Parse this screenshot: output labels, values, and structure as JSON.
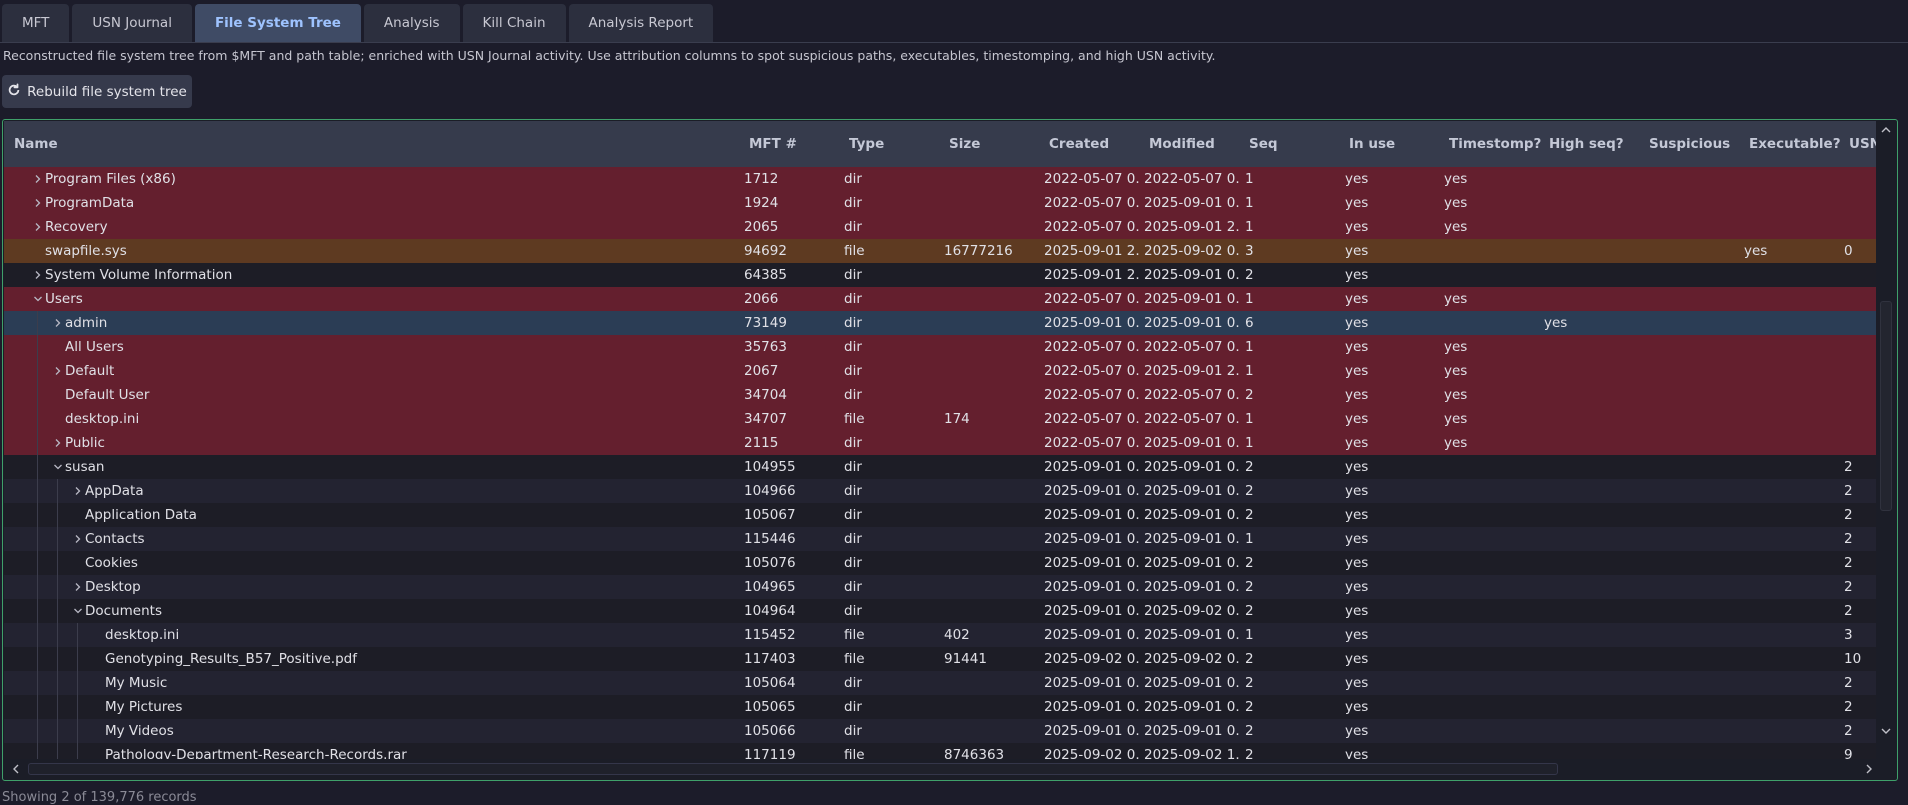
{
  "tabs": [
    {
      "label": "MFT",
      "active": false
    },
    {
      "label": "USN Journal",
      "active": false
    },
    {
      "label": "File System Tree",
      "active": true
    },
    {
      "label": "Analysis",
      "active": false
    },
    {
      "label": "Kill Chain",
      "active": false
    },
    {
      "label": "Analysis Report",
      "active": false
    }
  ],
  "description": "Reconstructed file system tree from $MFT and path table; enriched with USN Journal activity. Use attribution columns to spot suspicious paths, executables, timestomping, and high USN activity.",
  "rebuild_button": {
    "label": "Rebuild file system tree",
    "icon": "refresh-icon"
  },
  "table": {
    "columns": [
      "Name",
      "MFT #",
      "Type",
      "Size",
      "Created",
      "Modified",
      "Seq",
      "In use",
      "Timestomp?",
      "High seq?",
      "Suspicious pa",
      "Executable?",
      "USN"
    ],
    "rows": [
      {
        "name": "Program Files (x86)",
        "depth": 0,
        "expander": "collapsed",
        "highlight": "red",
        "mft": "1712",
        "type": "dir",
        "size": "",
        "created": "2022-05-07 0...",
        "modified": "2022-05-07 0...",
        "seq": "1",
        "inuse": "yes",
        "timestomp": "yes",
        "highseq": "",
        "suspicious": "",
        "exec": "",
        "usn": ""
      },
      {
        "name": "ProgramData",
        "depth": 0,
        "expander": "collapsed",
        "highlight": "red",
        "mft": "1924",
        "type": "dir",
        "size": "",
        "created": "2022-05-07 0...",
        "modified": "2025-09-01 0...",
        "seq": "1",
        "inuse": "yes",
        "timestomp": "yes",
        "highseq": "",
        "suspicious": "",
        "exec": "",
        "usn": ""
      },
      {
        "name": "Recovery",
        "depth": 0,
        "expander": "collapsed",
        "highlight": "red",
        "mft": "2065",
        "type": "dir",
        "size": "",
        "created": "2022-05-07 0...",
        "modified": "2025-09-01 2...",
        "seq": "1",
        "inuse": "yes",
        "timestomp": "yes",
        "highseq": "",
        "suspicious": "",
        "exec": "",
        "usn": ""
      },
      {
        "name": "swapfile.sys",
        "depth": 0,
        "expander": "none",
        "highlight": "orange",
        "mft": "94692",
        "type": "file",
        "size": "16777216",
        "created": "2025-09-01 2...",
        "modified": "2025-09-02 0...",
        "seq": "3",
        "inuse": "yes",
        "timestomp": "",
        "highseq": "",
        "suspicious": "",
        "exec": "yes",
        "usn": "0"
      },
      {
        "name": "System Volume Information",
        "depth": 0,
        "expander": "collapsed",
        "highlight": "even",
        "mft": "64385",
        "type": "dir",
        "size": "",
        "created": "2025-09-01 2...",
        "modified": "2025-09-01 0...",
        "seq": "2",
        "inuse": "yes",
        "timestomp": "",
        "highseq": "",
        "suspicious": "",
        "exec": "",
        "usn": ""
      },
      {
        "name": "Users",
        "depth": 0,
        "expander": "expanded",
        "highlight": "red",
        "mft": "2066",
        "type": "dir",
        "size": "",
        "created": "2022-05-07 0...",
        "modified": "2025-09-01 0...",
        "seq": "1",
        "inuse": "yes",
        "timestomp": "yes",
        "highseq": "",
        "suspicious": "",
        "exec": "",
        "usn": ""
      },
      {
        "name": "admin",
        "depth": 1,
        "expander": "collapsed",
        "highlight": "sel",
        "mft": "73149",
        "type": "dir",
        "size": "",
        "created": "2025-09-01 0...",
        "modified": "2025-09-01 0...",
        "seq": "6",
        "inuse": "yes",
        "timestomp": "",
        "highseq": "yes",
        "suspicious": "",
        "exec": "",
        "usn": ""
      },
      {
        "name": "All Users",
        "depth": 1,
        "expander": "none",
        "highlight": "red",
        "mft": "35763",
        "type": "dir",
        "size": "",
        "created": "2022-05-07 0...",
        "modified": "2022-05-07 0...",
        "seq": "1",
        "inuse": "yes",
        "timestomp": "yes",
        "highseq": "",
        "suspicious": "",
        "exec": "",
        "usn": ""
      },
      {
        "name": "Default",
        "depth": 1,
        "expander": "collapsed",
        "highlight": "red",
        "mft": "2067",
        "type": "dir",
        "size": "",
        "created": "2022-05-07 0...",
        "modified": "2025-09-01 2...",
        "seq": "1",
        "inuse": "yes",
        "timestomp": "yes",
        "highseq": "",
        "suspicious": "",
        "exec": "",
        "usn": ""
      },
      {
        "name": "Default User",
        "depth": 1,
        "expander": "none",
        "highlight": "red",
        "mft": "34704",
        "type": "dir",
        "size": "",
        "created": "2022-05-07 0...",
        "modified": "2022-05-07 0...",
        "seq": "2",
        "inuse": "yes",
        "timestomp": "yes",
        "highseq": "",
        "suspicious": "",
        "exec": "",
        "usn": ""
      },
      {
        "name": "desktop.ini",
        "depth": 1,
        "expander": "none",
        "highlight": "red",
        "mft": "34707",
        "type": "file",
        "size": "174",
        "created": "2022-05-07 0...",
        "modified": "2022-05-07 0...",
        "seq": "1",
        "inuse": "yes",
        "timestomp": "yes",
        "highseq": "",
        "suspicious": "",
        "exec": "",
        "usn": ""
      },
      {
        "name": "Public",
        "depth": 1,
        "expander": "collapsed",
        "highlight": "red",
        "mft": "2115",
        "type": "dir",
        "size": "",
        "created": "2022-05-07 0...",
        "modified": "2025-09-01 0...",
        "seq": "1",
        "inuse": "yes",
        "timestomp": "yes",
        "highseq": "",
        "suspicious": "",
        "exec": "",
        "usn": ""
      },
      {
        "name": "susan",
        "depth": 1,
        "expander": "expanded",
        "highlight": "even",
        "mft": "104955",
        "type": "dir",
        "size": "",
        "created": "2025-09-01 0...",
        "modified": "2025-09-01 0...",
        "seq": "2",
        "inuse": "yes",
        "timestomp": "",
        "highseq": "",
        "suspicious": "",
        "exec": "",
        "usn": "2"
      },
      {
        "name": "AppData",
        "depth": 2,
        "expander": "collapsed",
        "highlight": "odd",
        "mft": "104966",
        "type": "dir",
        "size": "",
        "created": "2025-09-01 0...",
        "modified": "2025-09-01 0...",
        "seq": "2",
        "inuse": "yes",
        "timestomp": "",
        "highseq": "",
        "suspicious": "",
        "exec": "",
        "usn": "2"
      },
      {
        "name": "Application Data",
        "depth": 2,
        "expander": "none",
        "highlight": "even",
        "mft": "105067",
        "type": "dir",
        "size": "",
        "created": "2025-09-01 0...",
        "modified": "2025-09-01 0...",
        "seq": "2",
        "inuse": "yes",
        "timestomp": "",
        "highseq": "",
        "suspicious": "",
        "exec": "",
        "usn": "2"
      },
      {
        "name": "Contacts",
        "depth": 2,
        "expander": "collapsed",
        "highlight": "odd",
        "mft": "115446",
        "type": "dir",
        "size": "",
        "created": "2025-09-01 0...",
        "modified": "2025-09-01 0...",
        "seq": "1",
        "inuse": "yes",
        "timestomp": "",
        "highseq": "",
        "suspicious": "",
        "exec": "",
        "usn": "2"
      },
      {
        "name": "Cookies",
        "depth": 2,
        "expander": "none",
        "highlight": "even",
        "mft": "105076",
        "type": "dir",
        "size": "",
        "created": "2025-09-01 0...",
        "modified": "2025-09-01 0...",
        "seq": "2",
        "inuse": "yes",
        "timestomp": "",
        "highseq": "",
        "suspicious": "",
        "exec": "",
        "usn": "2"
      },
      {
        "name": "Desktop",
        "depth": 2,
        "expander": "collapsed",
        "highlight": "odd",
        "mft": "104965",
        "type": "dir",
        "size": "",
        "created": "2025-09-01 0...",
        "modified": "2025-09-01 0...",
        "seq": "2",
        "inuse": "yes",
        "timestomp": "",
        "highseq": "",
        "suspicious": "",
        "exec": "",
        "usn": "2"
      },
      {
        "name": "Documents",
        "depth": 2,
        "expander": "expanded",
        "highlight": "even",
        "mft": "104964",
        "type": "dir",
        "size": "",
        "created": "2025-09-01 0...",
        "modified": "2025-09-02 0...",
        "seq": "2",
        "inuse": "yes",
        "timestomp": "",
        "highseq": "",
        "suspicious": "",
        "exec": "",
        "usn": "2"
      },
      {
        "name": "desktop.ini",
        "depth": 3,
        "expander": "none",
        "highlight": "odd",
        "mft": "115452",
        "type": "file",
        "size": "402",
        "created": "2025-09-01 0...",
        "modified": "2025-09-01 0...",
        "seq": "1",
        "inuse": "yes",
        "timestomp": "",
        "highseq": "",
        "suspicious": "",
        "exec": "",
        "usn": "3"
      },
      {
        "name": "Genotyping_Results_B57_Positive.pdf",
        "depth": 3,
        "expander": "none",
        "highlight": "even",
        "mft": "117403",
        "type": "file",
        "size": "91441",
        "created": "2025-09-02 0...",
        "modified": "2025-09-02 0...",
        "seq": "2",
        "inuse": "yes",
        "timestomp": "",
        "highseq": "",
        "suspicious": "",
        "exec": "",
        "usn": "10"
      },
      {
        "name": "My Music",
        "depth": 3,
        "expander": "none",
        "highlight": "odd",
        "mft": "105064",
        "type": "dir",
        "size": "",
        "created": "2025-09-01 0...",
        "modified": "2025-09-01 0...",
        "seq": "2",
        "inuse": "yes",
        "timestomp": "",
        "highseq": "",
        "suspicious": "",
        "exec": "",
        "usn": "2"
      },
      {
        "name": "My Pictures",
        "depth": 3,
        "expander": "none",
        "highlight": "even",
        "mft": "105065",
        "type": "dir",
        "size": "",
        "created": "2025-09-01 0...",
        "modified": "2025-09-01 0...",
        "seq": "2",
        "inuse": "yes",
        "timestomp": "",
        "highseq": "",
        "suspicious": "",
        "exec": "",
        "usn": "2"
      },
      {
        "name": "My Videos",
        "depth": 3,
        "expander": "none",
        "highlight": "odd",
        "mft": "105066",
        "type": "dir",
        "size": "",
        "created": "2025-09-01 0...",
        "modified": "2025-09-01 0...",
        "seq": "2",
        "inuse": "yes",
        "timestomp": "",
        "highseq": "",
        "suspicious": "",
        "exec": "",
        "usn": "2"
      },
      {
        "name": "Pathology-Department-Research-Records.rar",
        "depth": 3,
        "expander": "none",
        "highlight": "even",
        "mft": "117119",
        "type": "file",
        "size": "8746363",
        "created": "2025-09-02 0...",
        "modified": "2025-09-02 1...",
        "seq": "2",
        "inuse": "yes",
        "timestomp": "",
        "highseq": "",
        "suspicious": "",
        "exec": "",
        "usn": "9"
      }
    ]
  },
  "status": "Showing 2 of 139,776 records",
  "colors": {
    "accent": "#9ec3ff",
    "timestomp_row": "#641f2e",
    "exec_row": "#5e3a21",
    "selected_row": "#2b3d55",
    "frame_border": "#3fa06a"
  }
}
